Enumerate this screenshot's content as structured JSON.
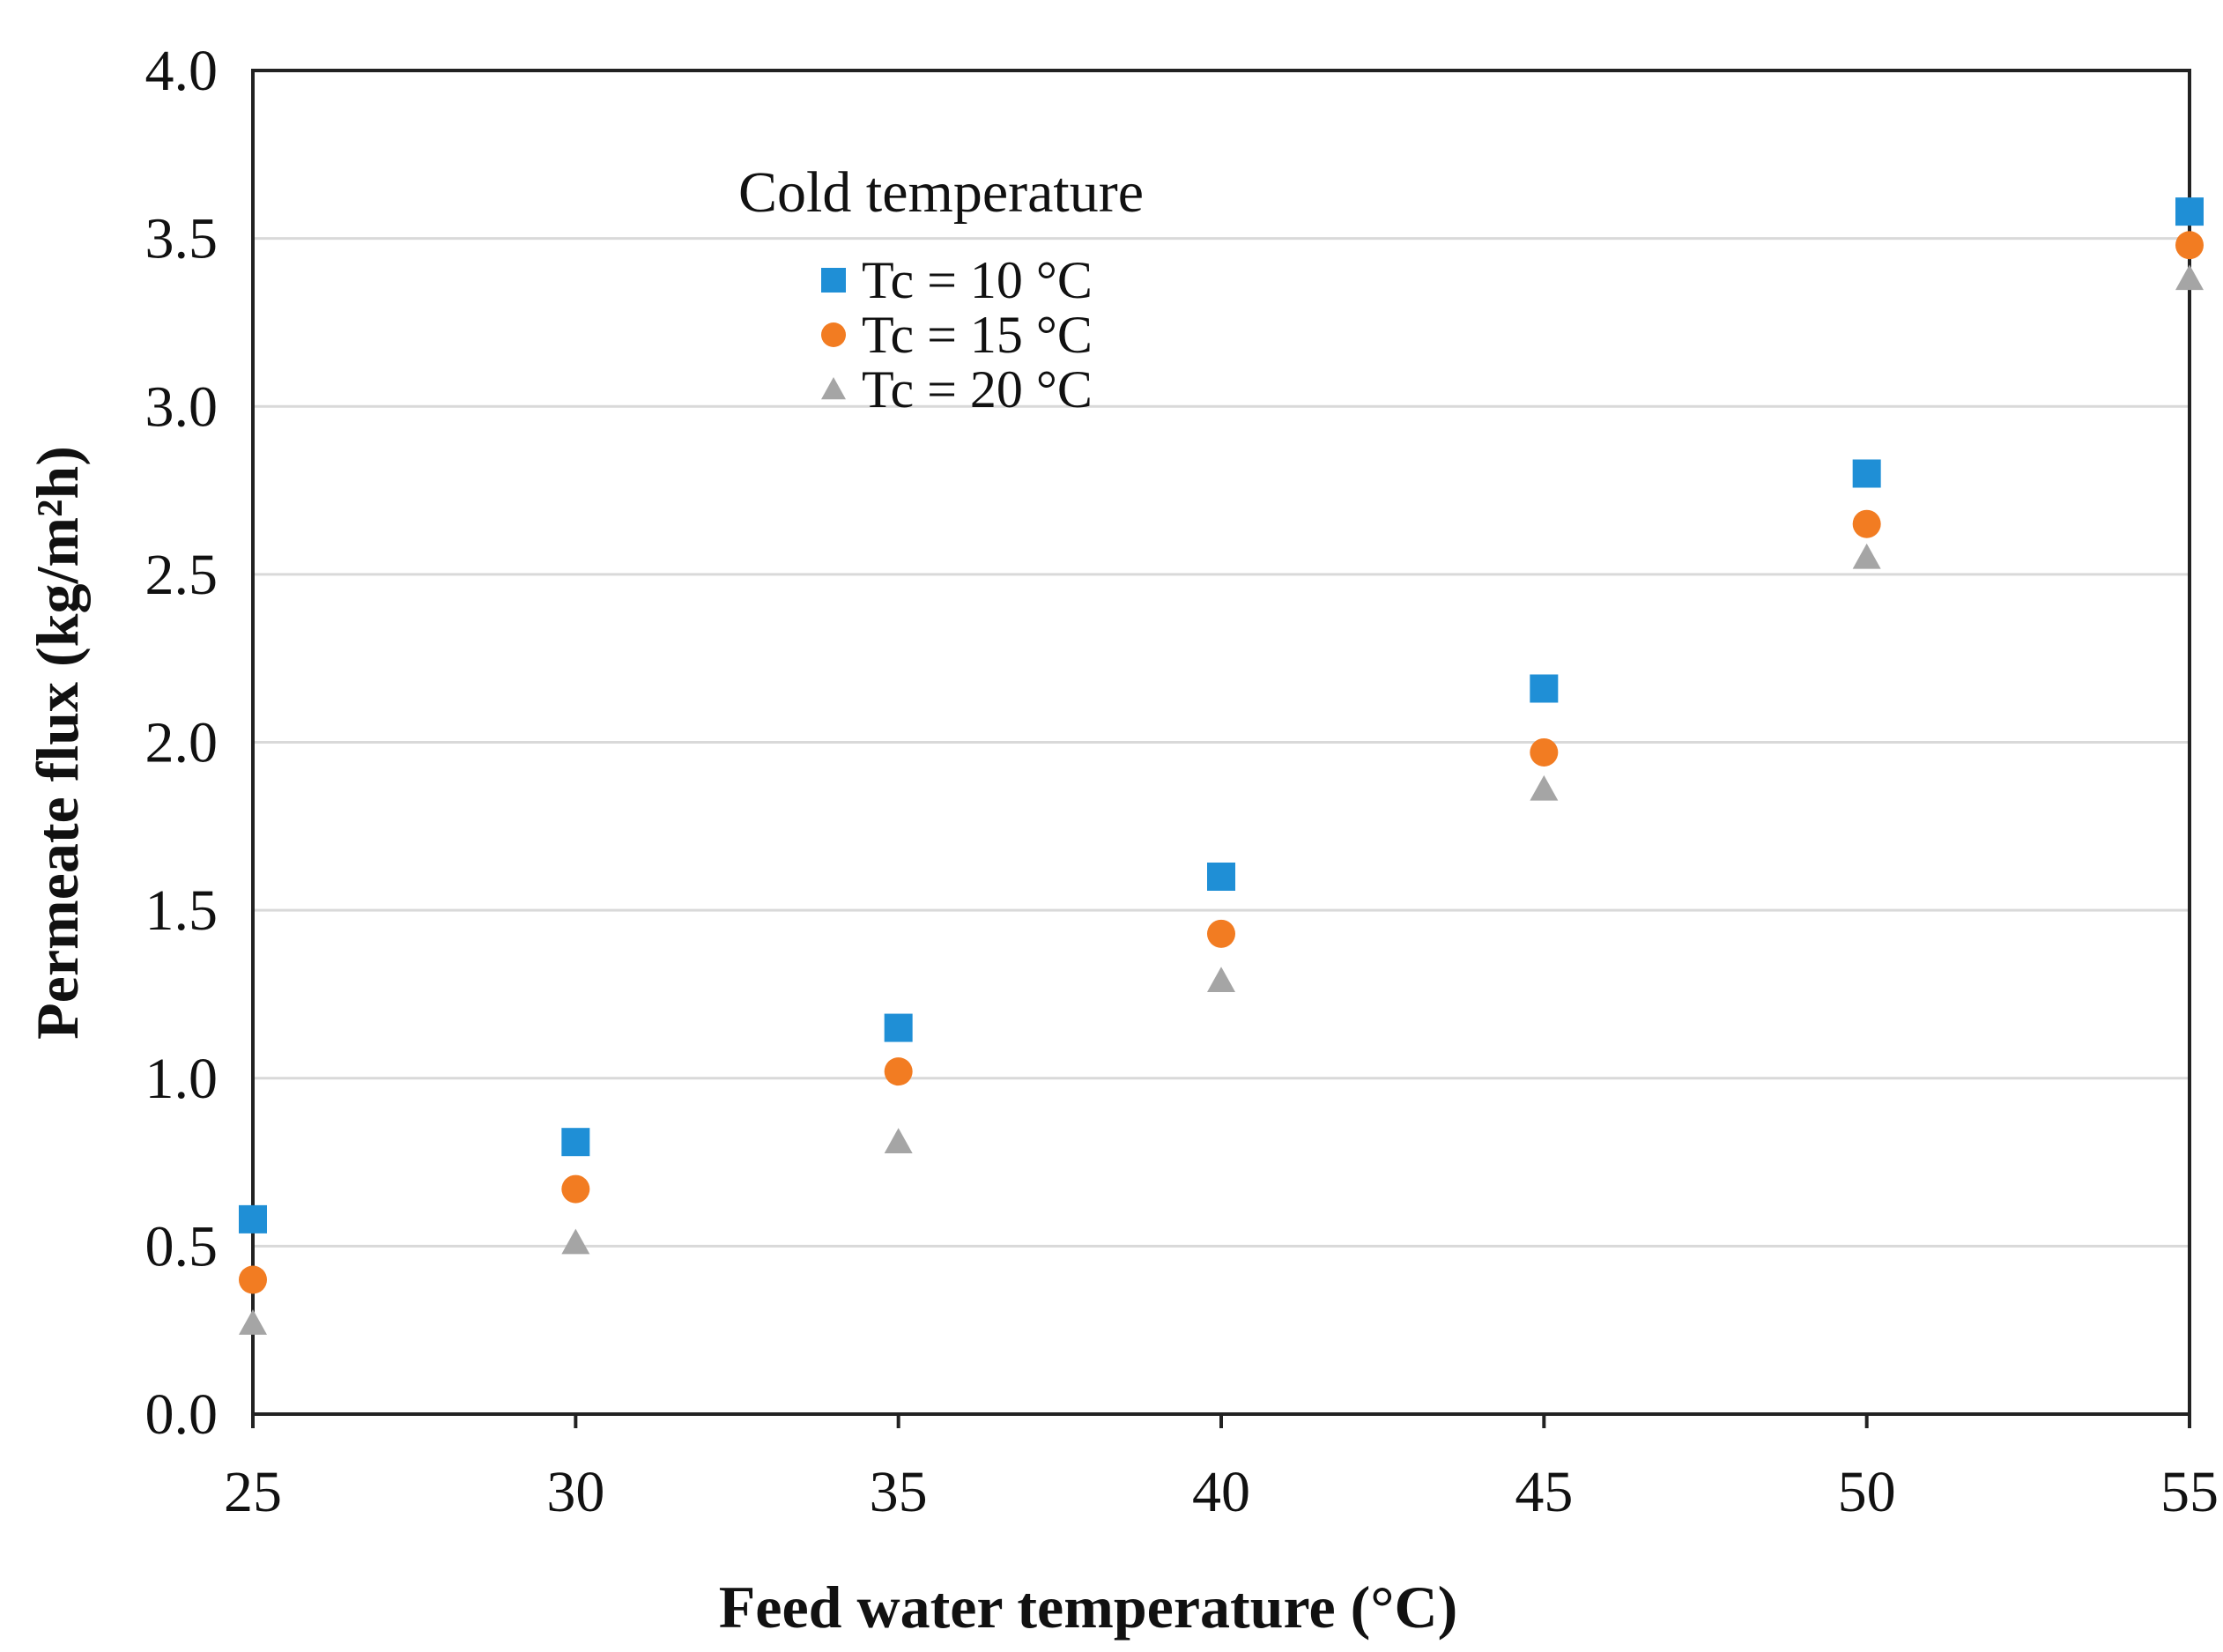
{
  "chart_data": {
    "type": "scatter",
    "title": "",
    "xlabel": "Feed water temperature  (°C)",
    "ylabel": "Permeate flux (kg/m²h)",
    "xlim": [
      25,
      55
    ],
    "ylim": [
      0.0,
      4.0
    ],
    "xticks": [
      "25",
      "30",
      "35",
      "40",
      "45",
      "50",
      "55"
    ],
    "yticks": [
      "0.0",
      "0.5",
      "1.0",
      "1.5",
      "2.0",
      "2.5",
      "3.0",
      "3.5",
      "4.0"
    ],
    "grid": true,
    "legend": {
      "title": "Cold temperature",
      "position": "top-left"
    },
    "x": [
      25,
      30,
      35,
      40,
      45,
      50,
      55
    ],
    "series": [
      {
        "name": "Tc = 10 °C",
        "marker": "square",
        "color": "#1f8fd6",
        "values": [
          0.58,
          0.81,
          1.15,
          1.6,
          2.16,
          2.8,
          3.58
        ]
      },
      {
        "name": "Tc = 15 °C",
        "marker": "circle",
        "color": "#f27c22",
        "values": [
          0.4,
          0.67,
          1.02,
          1.43,
          1.97,
          2.65,
          3.48
        ]
      },
      {
        "name": "Tc = 20 °C",
        "marker": "triangle",
        "color": "#a5a5a5",
        "values": [
          0.27,
          0.51,
          0.81,
          1.29,
          1.86,
          2.55,
          3.38
        ]
      }
    ]
  }
}
